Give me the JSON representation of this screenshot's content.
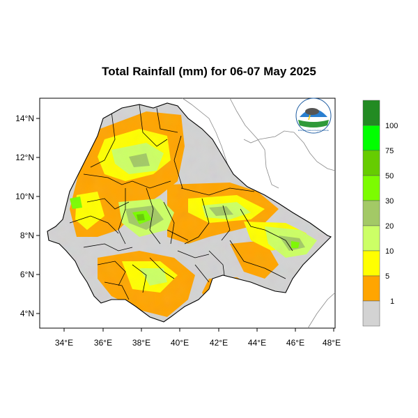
{
  "title": "Total Rainfall (mm) for 06-07 May 2025",
  "axes": {
    "lon_ticks": [
      "34°E",
      "36°E",
      "38°E",
      "40°E",
      "42°E",
      "44°E",
      "46°E",
      "48°E"
    ],
    "lat_ticks": [
      "14°N",
      "12°N",
      "10°N",
      "8°N",
      "6°N",
      "4°N"
    ]
  },
  "legend": {
    "classes": [
      {
        "label": "1",
        "color": "#d3d3d3"
      },
      {
        "label": "5",
        "color": "#ffa500"
      },
      {
        "label": "10",
        "color": "#ffff00"
      },
      {
        "label": "20",
        "color": "#ccff66"
      },
      {
        "label": "30",
        "color": "#a3c966"
      },
      {
        "label": "50",
        "color": "#7cfc00"
      },
      {
        "label": "75",
        "color": "#66cc00"
      },
      {
        "label": "100",
        "color": "#00ff00"
      },
      {
        "label": "",
        "color": "#228b22"
      }
    ]
  },
  "colors": {
    "no_rain": "#d3d3d3",
    "light": "#ffa500",
    "moderate": "#ffff00",
    "heavy": "#7cfc00",
    "boundary": "#000000",
    "neighbor_border": "#888888"
  },
  "logo": {
    "text": "Ethiopian Meteorological Institute"
  }
}
